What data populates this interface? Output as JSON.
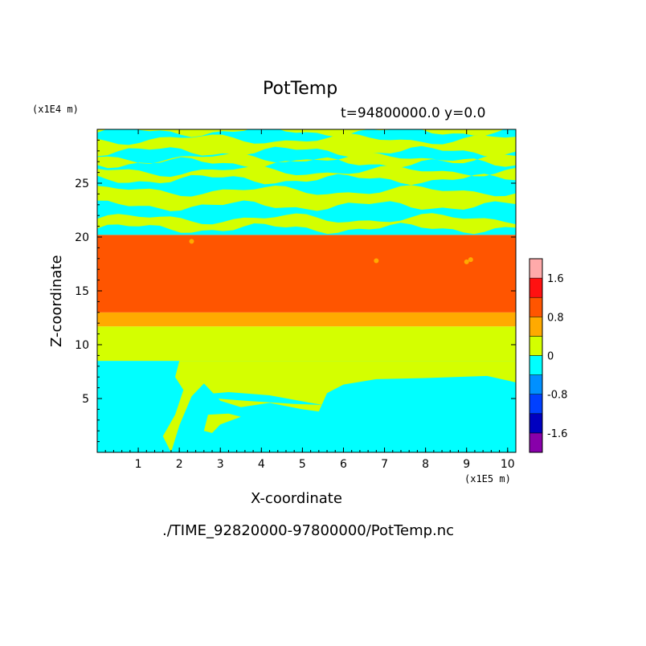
{
  "chart_data": {
    "type": "heatmap",
    "title": "PotTemp",
    "subtitle": "t=94800000.0 y=0.0",
    "xlabel": "X-coordinate",
    "ylabel": "Z-coordinate",
    "x_unit_label": "(x1E5 m)",
    "y_unit_label": "(x1E4 m)",
    "xlim": [
      0,
      10.2
    ],
    "ylim": [
      0,
      30
    ],
    "x_ticks": [
      1,
      2,
      3,
      4,
      5,
      6,
      7,
      8,
      9,
      10
    ],
    "y_ticks": [
      5,
      10,
      15,
      20,
      25
    ],
    "colorbar": {
      "levels": [
        -2.0,
        -1.6,
        -1.2,
        -0.8,
        -0.4,
        0,
        0.4,
        0.8,
        1.2,
        1.6,
        2.0
      ],
      "colors": [
        "#8800aa",
        "#0000c0",
        "#0040ff",
        "#0090ff",
        "#00ffff",
        "#d4ff00",
        "#ffaa00",
        "#ff5500",
        "#ff1111",
        "#ffaaaa"
      ],
      "tick_labels": [
        "-1.6",
        "-0.8",
        "0",
        "0.8",
        "1.6"
      ]
    },
    "bands": [
      {
        "z_range": [
          0,
          8.5
        ],
        "value_range": [
          -0.4,
          0
        ],
        "color": "#00ffff",
        "note": "lower region"
      },
      {
        "z_range": [
          8.5,
          11.7
        ],
        "value_range": [
          0,
          0.4
        ],
        "color": "#d4ff00"
      },
      {
        "z_range": [
          11.7,
          13.0
        ],
        "value_range": [
          0.4,
          0.8
        ],
        "color": "#ffaa00"
      },
      {
        "z_range": [
          13.0,
          20.2
        ],
        "value_range": [
          0.8,
          1.2
        ],
        "color": "#ff5500"
      },
      {
        "z_range": [
          20.2,
          30
        ],
        "value_range": [
          -0.4,
          0.4
        ],
        "color": "striped cyan / yellow-green",
        "note": "alternating wave layers"
      }
    ]
  },
  "footer_text": "./TIME_92820000-97800000/PotTemp.nc"
}
